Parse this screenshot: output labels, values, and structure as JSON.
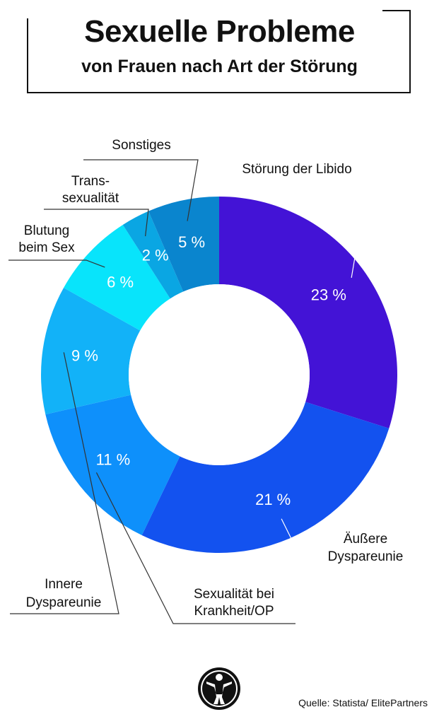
{
  "title": "Sexuelle Probleme",
  "subtitle": "von Frauen nach Art der Störung",
  "source": "Quelle: Statista/ ElitePartners",
  "logo": "silhouette-logo",
  "chart_data": {
    "type": "pie",
    "donut": true,
    "slices": [
      {
        "label": "Störung der Libido",
        "value": 23,
        "value_label": "23 %",
        "color": "#4313d6"
      },
      {
        "label": "Äußere Dyspareunie",
        "value": 21,
        "value_label": "21 %",
        "color": "#1352ef"
      },
      {
        "label": "Sexualität bei Krankheit/OP",
        "value": 11,
        "value_label": "11 %",
        "color": "#0e90fb"
      },
      {
        "label": "Innere Dyspareunie",
        "value": 9,
        "value_label": "9 %",
        "color": "#12b2f8"
      },
      {
        "label": "Blutung beim Sex",
        "value": 6,
        "value_label": "6 %",
        "color": "#08e4fb"
      },
      {
        "label": "Trans- sexualität",
        "value": 2,
        "value_label": "2 %",
        "color": "#0aa6e3"
      },
      {
        "label": "Sonstiges",
        "value": 5,
        "value_label": "5 %",
        "color": "#0a85ce"
      }
    ]
  }
}
